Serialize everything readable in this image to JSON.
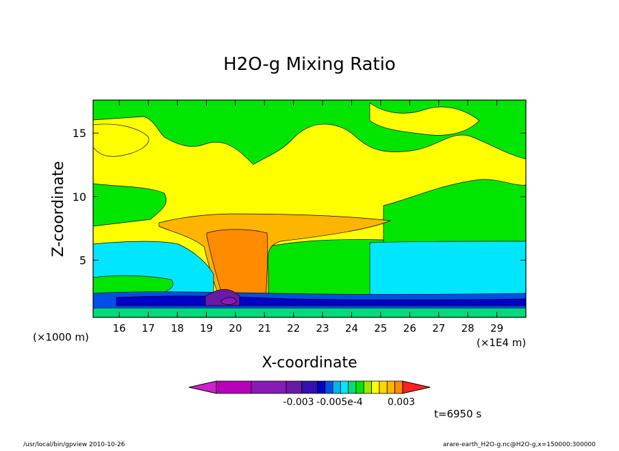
{
  "chart_data": {
    "type": "heatmap",
    "title": "H2O-g Mixing Ratio",
    "xlabel": "X-coordinate",
    "ylabel": "Z-coordinate",
    "x_ticks": [
      16,
      17,
      18,
      19,
      20,
      21,
      22,
      23,
      24,
      25,
      26,
      27,
      28,
      29
    ],
    "y_ticks": [
      5,
      10,
      15
    ],
    "xlim": [
      15.1,
      30
    ],
    "ylim": [
      0.5,
      17.6
    ],
    "x_unit_left": "(×1000 m)",
    "x_unit_right": "(×1E4 m)",
    "time_label": "t=6950 s",
    "colorbar": {
      "colors": [
        "#cc22cc",
        "#b800b8",
        "#8a1ab8",
        "#6a1aa8",
        "#3410b0",
        "#0000c8",
        "#0050e6",
        "#00b4f0",
        "#00e6ff",
        "#00dc78",
        "#00e600",
        "#a0e600",
        "#ffff00",
        "#ffd700",
        "#ffb400",
        "#ff8c00",
        "#ff2020"
      ],
      "labels": [
        "-0.003",
        "-0.005e-4",
        "0.003"
      ]
    },
    "footer_left": "/usr/local/bin/gpview  2010-10-26",
    "footer_right": "arare-earth_H2O-g.nc@H2O-g,x=150000:300000"
  }
}
